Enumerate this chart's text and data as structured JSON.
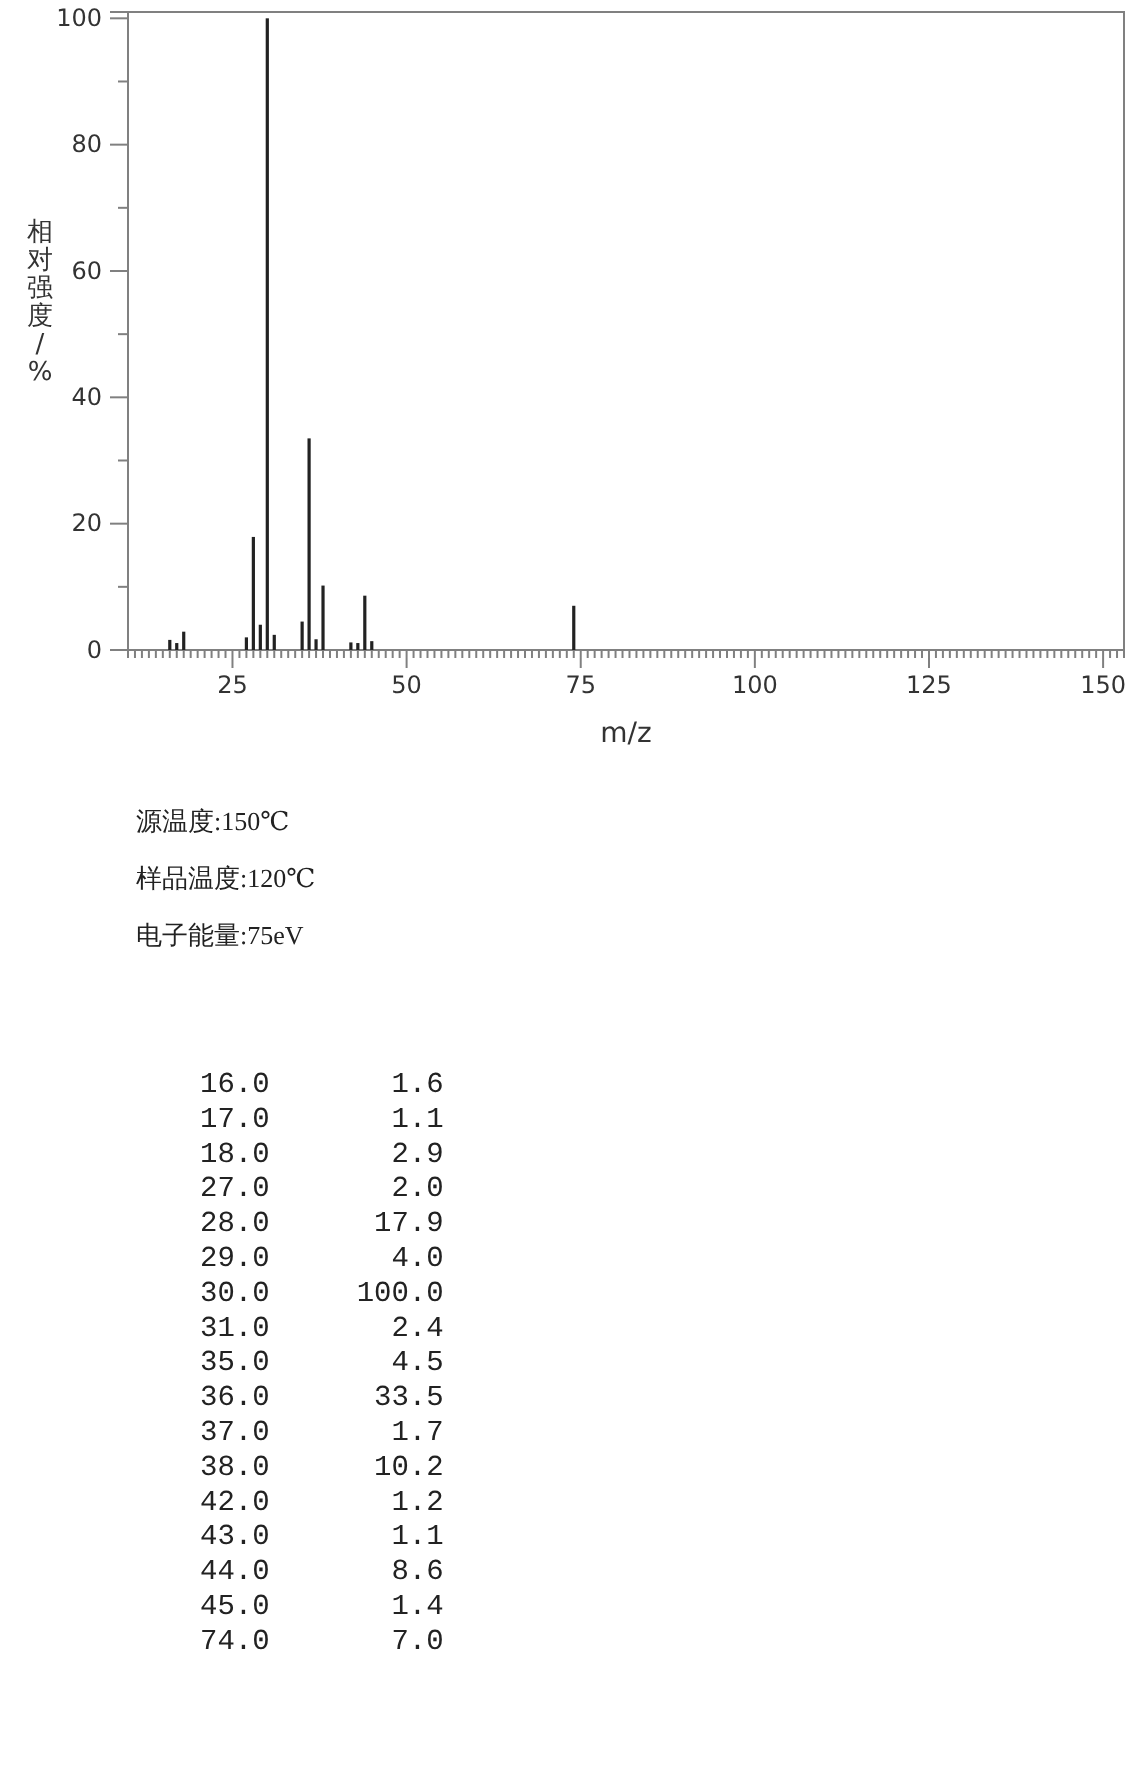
{
  "chart_data": [
    {
      "type": "bar",
      "xlabel": "m/z",
      "ylabel": "相对强度/%",
      "x": [
        16,
        17,
        18,
        27,
        28,
        29,
        30,
        31,
        35,
        36,
        37,
        38,
        42,
        43,
        44,
        45,
        74
      ],
      "values": [
        1.6,
        1.1,
        2.9,
        2.0,
        17.9,
        4.0,
        100.0,
        2.4,
        4.5,
        33.5,
        1.7,
        10.2,
        1.2,
        1.1,
        8.6,
        1.4,
        7.0
      ],
      "color": "#222222",
      "grid": false,
      "xlim": [
        10,
        153
      ],
      "ylim": [
        0,
        101
      ],
      "yticks": [
        0,
        {
          "value": 10,
          "label": null
        },
        20,
        {
          "value": 30,
          "label": null
        },
        40,
        {
          "value": 50,
          "label": null
        },
        60,
        {
          "value": 70,
          "label": null
        },
        80,
        {
          "value": 90,
          "label": null
        },
        100
      ],
      "xticks": [
        {
          "value": 10,
          "label": null
        },
        {
          "value": 11,
          "label": null
        },
        {
          "value": 12,
          "label": null
        },
        {
          "value": 13,
          "label": null
        },
        {
          "value": 14,
          "label": null
        },
        {
          "value": 15,
          "label": null
        },
        {
          "value": 16,
          "label": null
        },
        {
          "value": 17,
          "label": null
        },
        {
          "value": 18,
          "label": null
        },
        {
          "value": 19,
          "label": null
        },
        {
          "value": 20,
          "label": null
        },
        {
          "value": 21,
          "label": null
        },
        {
          "value": 22,
          "label": null
        },
        {
          "value": 23,
          "label": null
        },
        {
          "value": 24,
          "label": null
        },
        25,
        {
          "value": 26,
          "label": null
        },
        {
          "value": 27,
          "label": null
        },
        {
          "value": 28,
          "label": null
        },
        {
          "value": 29,
          "label": null
        },
        {
          "value": 30,
          "label": null
        },
        {
          "value": 31,
          "label": null
        },
        {
          "value": 32,
          "label": null
        },
        {
          "value": 33,
          "label": null
        },
        {
          "value": 34,
          "label": null
        },
        {
          "value": 35,
          "label": null
        },
        {
          "value": 36,
          "label": null
        },
        {
          "value": 37,
          "label": null
        },
        {
          "value": 38,
          "label": null
        },
        {
          "value": 39,
          "label": null
        },
        {
          "value": 40,
          "label": null
        },
        {
          "value": 41,
          "label": null
        },
        {
          "value": 42,
          "label": null
        },
        {
          "value": 43,
          "label": null
        },
        {
          "value": 44,
          "label": null
        },
        {
          "value": 45,
          "label": null
        },
        {
          "value": 46,
          "label": null
        },
        {
          "value": 47,
          "label": null
        },
        {
          "value": 48,
          "label": null
        },
        {
          "value": 49,
          "label": null
        },
        50,
        {
          "value": 51,
          "label": null
        },
        {
          "value": 52,
          "label": null
        },
        {
          "value": 53,
          "label": null
        },
        {
          "value": 54,
          "label": null
        },
        {
          "value": 55,
          "label": null
        },
        {
          "value": 56,
          "label": null
        },
        {
          "value": 57,
          "label": null
        },
        {
          "value": 58,
          "label": null
        },
        {
          "value": 59,
          "label": null
        },
        {
          "value": 60,
          "label": null
        },
        {
          "value": 61,
          "label": null
        },
        {
          "value": 62,
          "label": null
        },
        {
          "value": 63,
          "label": null
        },
        {
          "value": 64,
          "label": null
        },
        {
          "value": 65,
          "label": null
        },
        {
          "value": 66,
          "label": null
        },
        {
          "value": 67,
          "label": null
        },
        {
          "value": 68,
          "label": null
        },
        {
          "value": 69,
          "label": null
        },
        {
          "value": 70,
          "label": null
        },
        {
          "value": 71,
          "label": null
        },
        {
          "value": 72,
          "label": null
        },
        {
          "value": 73,
          "label": null
        },
        {
          "value": 74,
          "label": null
        },
        75,
        {
          "value": 76,
          "label": null
        },
        {
          "value": 77,
          "label": null
        },
        {
          "value": 78,
          "label": null
        },
        {
          "value": 79,
          "label": null
        },
        {
          "value": 80,
          "label": null
        },
        {
          "value": 81,
          "label": null
        },
        {
          "value": 82,
          "label": null
        },
        {
          "value": 83,
          "label": null
        },
        {
          "value": 84,
          "label": null
        },
        {
          "value": 85,
          "label": null
        },
        {
          "value": 86,
          "label": null
        },
        {
          "value": 87,
          "label": null
        },
        {
          "value": 88,
          "label": null
        },
        {
          "value": 89,
          "label": null
        },
        {
          "value": 90,
          "label": null
        },
        {
          "value": 91,
          "label": null
        },
        {
          "value": 92,
          "label": null
        },
        {
          "value": 93,
          "label": null
        },
        {
          "value": 94,
          "label": null
        },
        {
          "value": 95,
          "label": null
        },
        {
          "value": 96,
          "label": null
        },
        {
          "value": 97,
          "label": null
        },
        {
          "value": 98,
          "label": null
        },
        {
          "value": 99,
          "label": null
        },
        100,
        {
          "value": 101,
          "label": null
        },
        {
          "value": 102,
          "label": null
        },
        {
          "value": 103,
          "label": null
        },
        {
          "value": 104,
          "label": null
        },
        {
          "value": 105,
          "label": null
        },
        {
          "value": 106,
          "label": null
        },
        {
          "value": 107,
          "label": null
        },
        {
          "value": 108,
          "label": null
        },
        {
          "value": 109,
          "label": null
        },
        {
          "value": 110,
          "label": null
        },
        {
          "value": 111,
          "label": null
        },
        {
          "value": 112,
          "label": null
        },
        {
          "value": 113,
          "label": null
        },
        {
          "value": 114,
          "label": null
        },
        {
          "value": 115,
          "label": null
        },
        {
          "value": 116,
          "label": null
        },
        {
          "value": 117,
          "label": null
        },
        {
          "value": 118,
          "label": null
        },
        {
          "value": 119,
          "label": null
        },
        {
          "value": 120,
          "label": null
        },
        {
          "value": 121,
          "label": null
        },
        {
          "value": 122,
          "label": null
        },
        {
          "value": 123,
          "label": null
        },
        {
          "value": 124,
          "label": null
        },
        125,
        {
          "value": 126,
          "label": null
        },
        {
          "value": 127,
          "label": null
        },
        {
          "value": 128,
          "label": null
        },
        {
          "value": 129,
          "label": null
        },
        {
          "value": 130,
          "label": null
        },
        {
          "value": 131,
          "label": null
        },
        {
          "value": 132,
          "label": null
        },
        {
          "value": 133,
          "label": null
        },
        {
          "value": 134,
          "label": null
        },
        {
          "value": 135,
          "label": null
        },
        {
          "value": 136,
          "label": null
        },
        {
          "value": 137,
          "label": null
        },
        {
          "value": 138,
          "label": null
        },
        {
          "value": 139,
          "label": null
        },
        {
          "value": 140,
          "label": null
        },
        {
          "value": 141,
          "label": null
        },
        {
          "value": 142,
          "label": null
        },
        {
          "value": 143,
          "label": null
        },
        {
          "value": 144,
          "label": null
        },
        {
          "value": 145,
          "label": null
        },
        {
          "value": 146,
          "label": null
        },
        {
          "value": 147,
          "label": null
        },
        {
          "value": 148,
          "label": null
        },
        {
          "value": 149,
          "label": null
        },
        150,
        {
          "value": 151,
          "label": null
        },
        {
          "value": 152,
          "label": null
        },
        {
          "value": 153,
          "label": null
        }
      ],
      "annotations": [
        "源温度:150℃",
        "样品温度:120℃",
        "电子能量:75eV"
      ]
    },
    {
      "type": "other",
      "annotations": [
        "16.0       1.6",
        "17.0       1.1",
        "18.0       2.9",
        "27.0       2.0",
        "28.0      17.9",
        "29.0       4.0",
        "30.0     100.0",
        "31.0       2.4",
        "35.0       4.5",
        "36.0      33.5",
        "37.0       1.7",
        "38.0      10.2",
        "42.0       1.2",
        "43.0       1.1",
        "44.0       8.6",
        "45.0       1.4",
        "74.0       7.0"
      ]
    }
  ]
}
